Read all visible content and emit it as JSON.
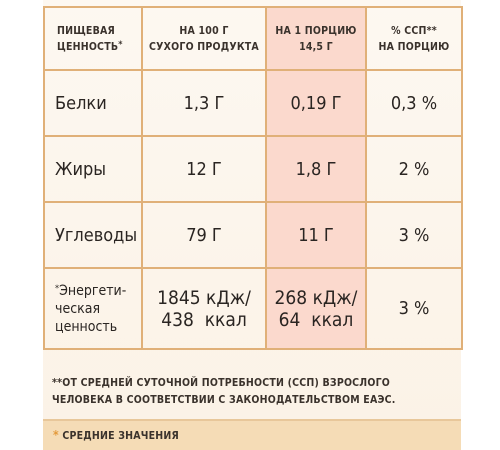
{
  "header": {
    "col1_line1": "ПИЩЕВАЯ",
    "col1_line2": "ЦЕННОСТЬ",
    "col1_mark": "*",
    "col2_line1": "НА 100 Г",
    "col2_line2": "СУХОГО ПРОДУКТА",
    "col3_line1": "НА 1 ПОРЦИЮ",
    "col3_line2": "14,5 Г",
    "col4_line1": "% ССП**",
    "col4_line2": "НА ПОРЦИЮ"
  },
  "rows": [
    {
      "name": "Белки",
      "per100": "1,3 Г",
      "perPortion": "0,19 Г",
      "percent": "0,3 %"
    },
    {
      "name": "Жиры",
      "per100": "12 Г",
      "perPortion": "1,8 Г",
      "percent": "2 %"
    },
    {
      "name": "Углеводы",
      "per100": "79 Г",
      "perPortion": "11 Г",
      "percent": "3 %"
    }
  ],
  "energy": {
    "mark": "*",
    "name_line1": "Энергети-",
    "name_line2": "ческая",
    "name_line3": "ценность",
    "per100_line1": "1845 кДж/",
    "per100_line2": "438  ккал",
    "perPortion_line1": "268 кДж/",
    "perPortion_line2": "64  ккал",
    "percent": "3 %"
  },
  "footnotes": {
    "ssp_mark": "**",
    "ssp_line1": "ОТ СРЕДНЕЙ СУТОЧНОЙ ПОТРЕБНОСТИ (ССП) ВЗРОСЛОГО",
    "ssp_line2": "ЧЕЛОВЕКА В СООТВЕТСТВИИ С ЗАКОНОДАТЕЛЬСТВОМ ЕАЭС.",
    "avg_mark": "*",
    "avg_text": "СРЕДНИЕ ЗНАЧЕНИЯ"
  },
  "colors": {
    "border": "#e0b078",
    "highlight": "#fbd9cd",
    "footer_band": "#f5dcb6",
    "star": "#e39a3c"
  }
}
